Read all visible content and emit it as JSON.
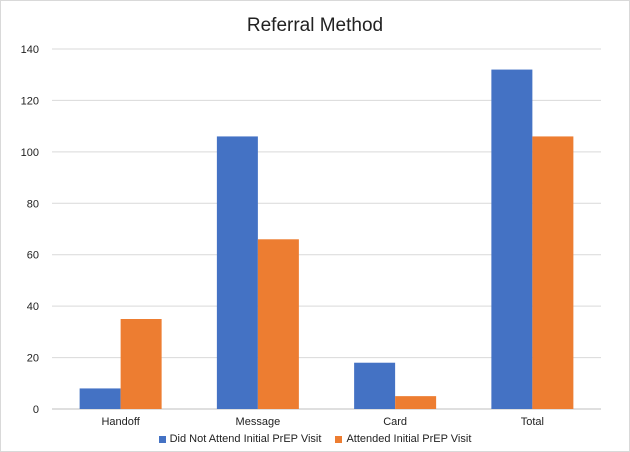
{
  "chart_data": {
    "type": "bar",
    "title": "Referral Method",
    "xlabel": "",
    "ylabel": "",
    "categories": [
      "Handoff",
      "Message",
      "Card",
      "Total"
    ],
    "series": [
      {
        "name": "Did Not Attend Initial PrEP Visit",
        "values": [
          8,
          106,
          18,
          132
        ],
        "color": "#4472c4"
      },
      {
        "name": "Attended Initial PrEP Visit",
        "values": [
          35,
          66,
          5,
          106
        ],
        "color": "#ed7d31"
      }
    ],
    "ylim": [
      0,
      140
    ],
    "yticks": [
      0,
      20,
      40,
      60,
      80,
      100,
      120,
      140
    ],
    "grid": true,
    "legend_position": "bottom"
  }
}
